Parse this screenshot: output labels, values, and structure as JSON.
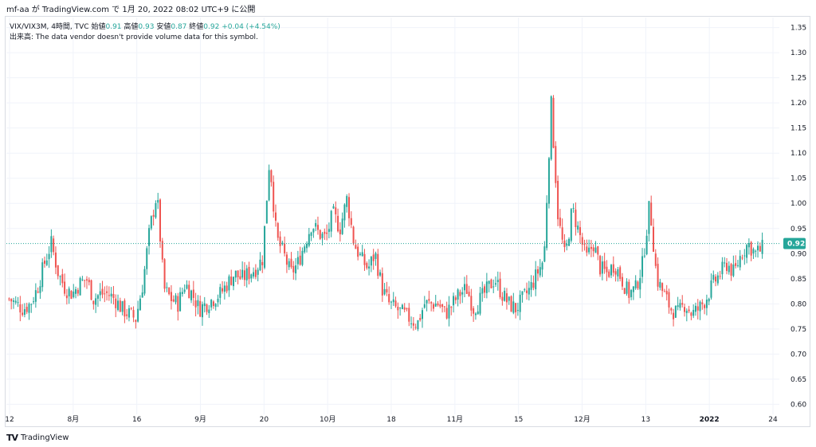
{
  "caption": "mf-aa が TradingView.com で 1月 20, 2022 08:02 UTC+9 に公開",
  "legend": {
    "symbol": "VIX/VIX3M, 4時間, TVC",
    "open_label": "始値",
    "open": "0.91",
    "high_label": "高値",
    "high": "0.93",
    "low_label": "安値",
    "low": "0.87",
    "close_label": "終値",
    "close": "0.92",
    "change": "+0.04 (+4.54%)"
  },
  "volume_note": "出来高: The data vendor doesn't provide volume data for this symbol.",
  "footer": {
    "brand": "TradingView"
  },
  "colors": {
    "up": "#26a69a",
    "down": "#ef5350",
    "price_label_bg": "#26a69a",
    "grid": "#f0f3fa"
  },
  "chart_data": {
    "type": "candlestick",
    "symbol": "VIX/VIX3M",
    "interval": "4時間",
    "ylim": [
      0.58,
      1.37
    ],
    "y_ticks": [
      "0.60",
      "0.65",
      "0.70",
      "0.75",
      "0.80",
      "0.85",
      "0.90",
      "0.95",
      "1.00",
      "1.05",
      "1.10",
      "1.15",
      "1.20",
      "1.25",
      "1.30",
      "1.35"
    ],
    "x_ticks": [
      "12",
      "8月",
      "16",
      "9月",
      "20",
      "10月",
      "18",
      "11月",
      "15",
      "12月",
      "13",
      "2022",
      "24"
    ],
    "last_price": 0.92,
    "last_price_label": "0.92",
    "close_path": [
      0.81,
      0.8,
      0.79,
      0.8,
      0.83,
      0.88,
      0.92,
      0.86,
      0.83,
      0.82,
      0.84,
      0.85,
      0.81,
      0.82,
      0.82,
      0.81,
      0.79,
      0.78,
      0.77,
      0.84,
      0.95,
      1.02,
      0.83,
      0.81,
      0.8,
      0.84,
      0.82,
      0.79,
      0.8,
      0.81,
      0.82,
      0.84,
      0.86,
      0.85,
      0.86,
      0.87,
      0.89,
      1.09,
      0.93,
      0.9,
      0.86,
      0.88,
      0.92,
      0.96,
      0.94,
      0.93,
      0.98,
      0.95,
      1.01,
      0.92,
      0.89,
      0.87,
      0.9,
      0.83,
      0.8,
      0.79,
      0.78,
      0.77,
      0.76,
      0.8,
      0.8,
      0.8,
      0.78,
      0.8,
      0.82,
      0.83,
      0.79,
      0.81,
      0.83,
      0.85,
      0.82,
      0.8,
      0.79,
      0.81,
      0.83,
      0.86,
      0.89,
      1.2,
      0.97,
      0.89,
      0.99,
      0.94,
      0.89,
      0.92,
      0.87,
      0.86,
      0.88,
      0.85,
      0.82,
      0.83,
      0.88,
      1.0,
      0.85,
      0.82,
      0.79,
      0.78,
      0.8,
      0.78,
      0.79,
      0.81,
      0.84,
      0.86,
      0.88,
      0.86,
      0.9,
      0.92,
      0.9,
      0.91
    ]
  }
}
